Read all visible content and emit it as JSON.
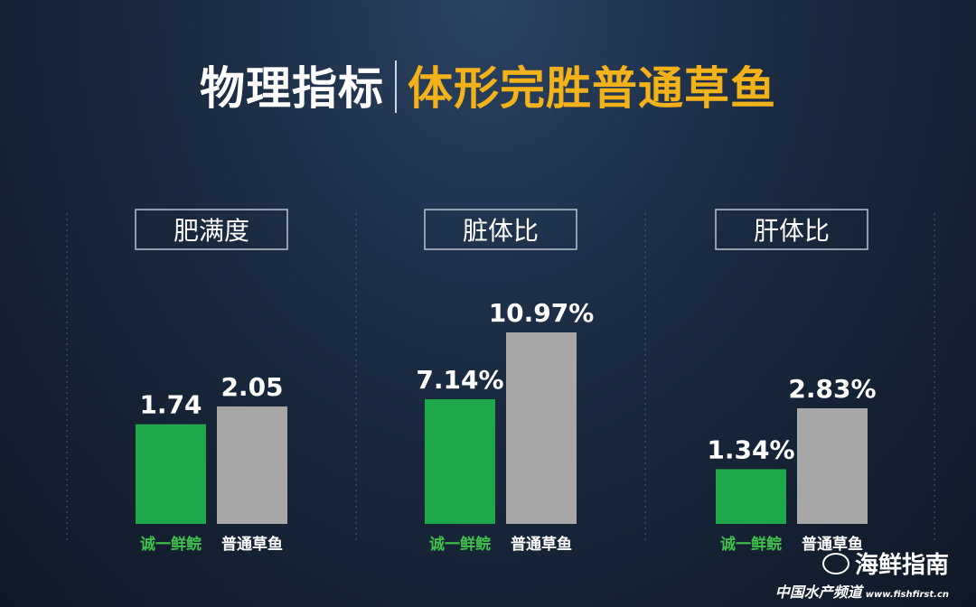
{
  "header": {
    "title_main": "物理指标",
    "title_sub": "体形完胜普通草鱼"
  },
  "watermark": {
    "line1": "海鲜指南",
    "line2": "中国水产频道",
    "url": "www.fishfirst.cn"
  },
  "colors": {
    "brand_green": "#1fa84a",
    "normal_gray": "#a7a7a7",
    "title_yellow": "#f3b21a"
  },
  "chart_data": [
    {
      "type": "bar",
      "title": "肥满度",
      "categories": [
        "诚一鲜鲩",
        "普通草鱼"
      ],
      "values": [
        1.74,
        2.05
      ],
      "value_labels": [
        "1.74",
        "2.05"
      ]
    },
    {
      "type": "bar",
      "title": "脏体比",
      "categories": [
        "诚一鲜鲩",
        "普通草鱼"
      ],
      "values": [
        7.14,
        10.97
      ],
      "value_labels": [
        "7.14%",
        "10.97%"
      ]
    },
    {
      "type": "bar",
      "title": "肝体比",
      "categories": [
        "诚一鲜鲩",
        "普通草鱼"
      ],
      "values": [
        1.34,
        2.83
      ],
      "value_labels": [
        "1.34%",
        "2.83%"
      ]
    }
  ]
}
